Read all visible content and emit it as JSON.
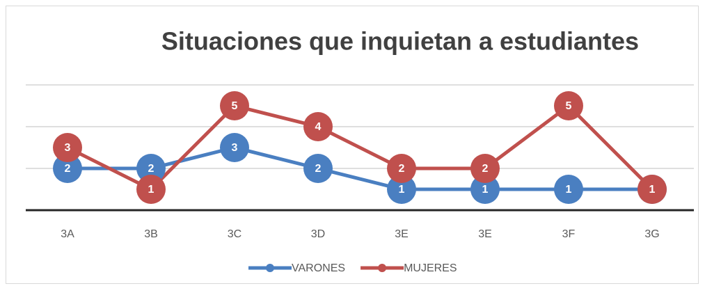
{
  "chart_data": {
    "type": "line",
    "title": "Situaciones que inquietan a estudiantes",
    "categories": [
      "3A",
      "3B",
      "3C",
      "3D",
      "3E",
      "3E",
      "3F",
      "3G"
    ],
    "series": [
      {
        "name": "VARONES",
        "color": "#4a7fc1",
        "values": [
          2,
          2,
          3,
          2,
          1,
          1,
          1,
          1
        ]
      },
      {
        "name": "MUJERES",
        "color": "#c0504d",
        "values": [
          3,
          1,
          5,
          4,
          2,
          2,
          5,
          1
        ]
      }
    ],
    "ylim": [
      0,
      6
    ],
    "yticks": [
      0,
      2,
      4,
      6
    ],
    "grid": true,
    "legend": "bottom"
  }
}
